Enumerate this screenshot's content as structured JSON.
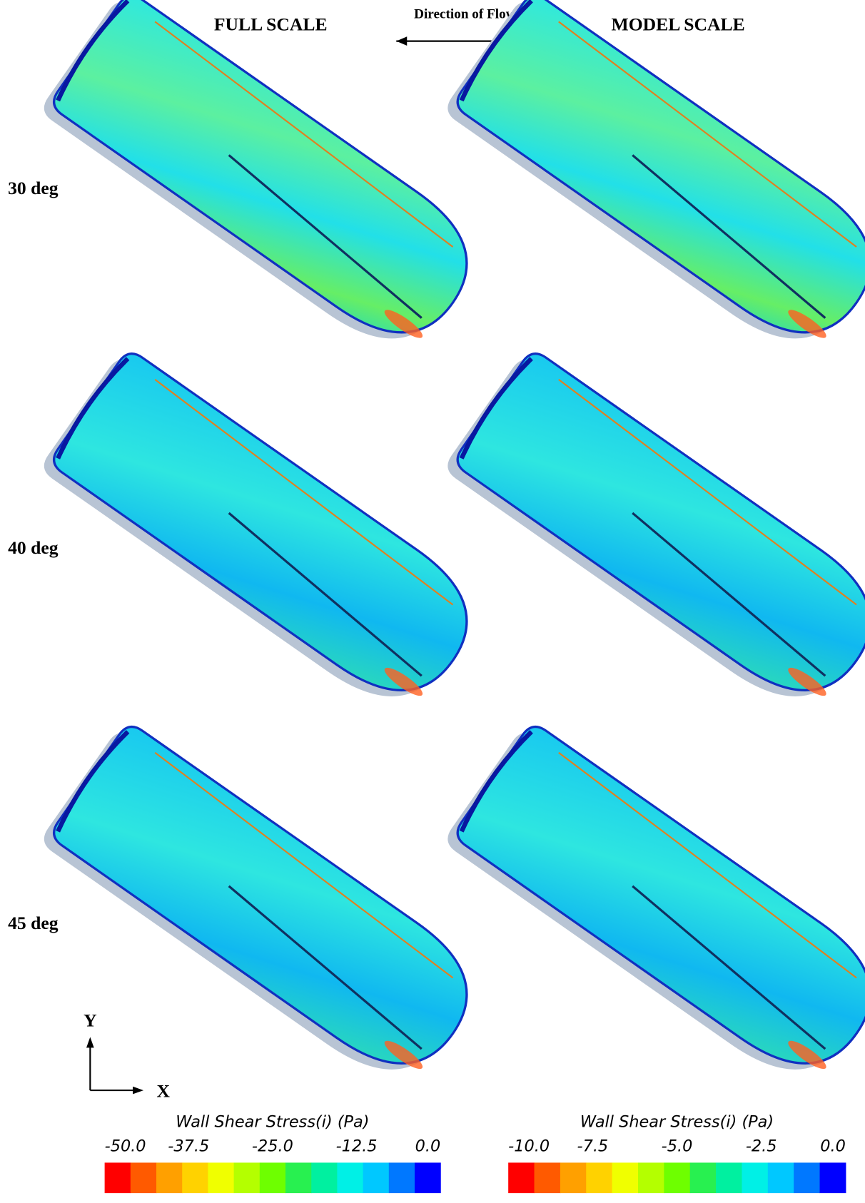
{
  "header": {
    "left_title": "FULL SCALE",
    "flow_label": "Direction of Flow",
    "right_title": "MODEL SCALE"
  },
  "row_labels": [
    "30 deg",
    "40 deg",
    "45 deg"
  ],
  "axes": {
    "y": "Y",
    "x": "X"
  },
  "legends": [
    {
      "title": "Wall Shear Stress(i) (Pa)",
      "ticks": [
        "-50.0",
        "-37.5",
        "-25.0",
        "-12.5",
        "0.0"
      ],
      "colors": [
        "#ff0000",
        "#ff5a00",
        "#ffa000",
        "#ffd200",
        "#f0ff00",
        "#b4ff00",
        "#6eff00",
        "#28f050",
        "#00f0a0",
        "#00f0e6",
        "#00c8ff",
        "#0078ff",
        "#0000ff"
      ]
    },
    {
      "title": "Wall Shear Stress(i) (Pa)",
      "ticks": [
        "-10.0",
        "-7.5",
        "-5.0",
        "-2.5",
        "0.0"
      ],
      "colors": [
        "#ff0000",
        "#ff5a00",
        "#ffa000",
        "#ffd200",
        "#f0ff00",
        "#b4ff00",
        "#6eff00",
        "#28f050",
        "#00f0a0",
        "#00f0e6",
        "#00c8ff",
        "#0078ff",
        "#0000ff"
      ]
    }
  ]
}
